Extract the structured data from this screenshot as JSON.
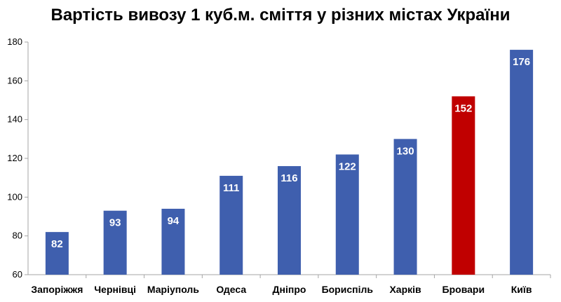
{
  "chart_data": {
    "type": "bar",
    "title": "Вартість вивозу 1 куб.м. сміття у різних містах України",
    "categories": [
      "Запоріжжя",
      "Чернівці",
      "Маріуполь",
      "Одеса",
      "Дніпро",
      "Бориспіль",
      "Харків",
      "Бровари",
      "Київ"
    ],
    "values": [
      82,
      93,
      94,
      111,
      116,
      122,
      130,
      152,
      176
    ],
    "value_labels": [
      "82",
      "93",
      "94",
      "111",
      "116",
      "122",
      "130",
      "152",
      "176"
    ],
    "ylim": [
      60,
      180
    ],
    "yticks": [
      60,
      80,
      100,
      120,
      140,
      160,
      180
    ],
    "ytick_labels": [
      "60",
      "80",
      "100",
      "120",
      "140",
      "160",
      "180"
    ],
    "xlabel": "",
    "ylabel": "",
    "grid": false,
    "legend": "none",
    "colors": {
      "bar": "#3f5fae",
      "highlight": "#c00000",
      "highlight_category": "Бровари",
      "axis": "#a6a6a6",
      "data_label": "#ffffff"
    }
  }
}
